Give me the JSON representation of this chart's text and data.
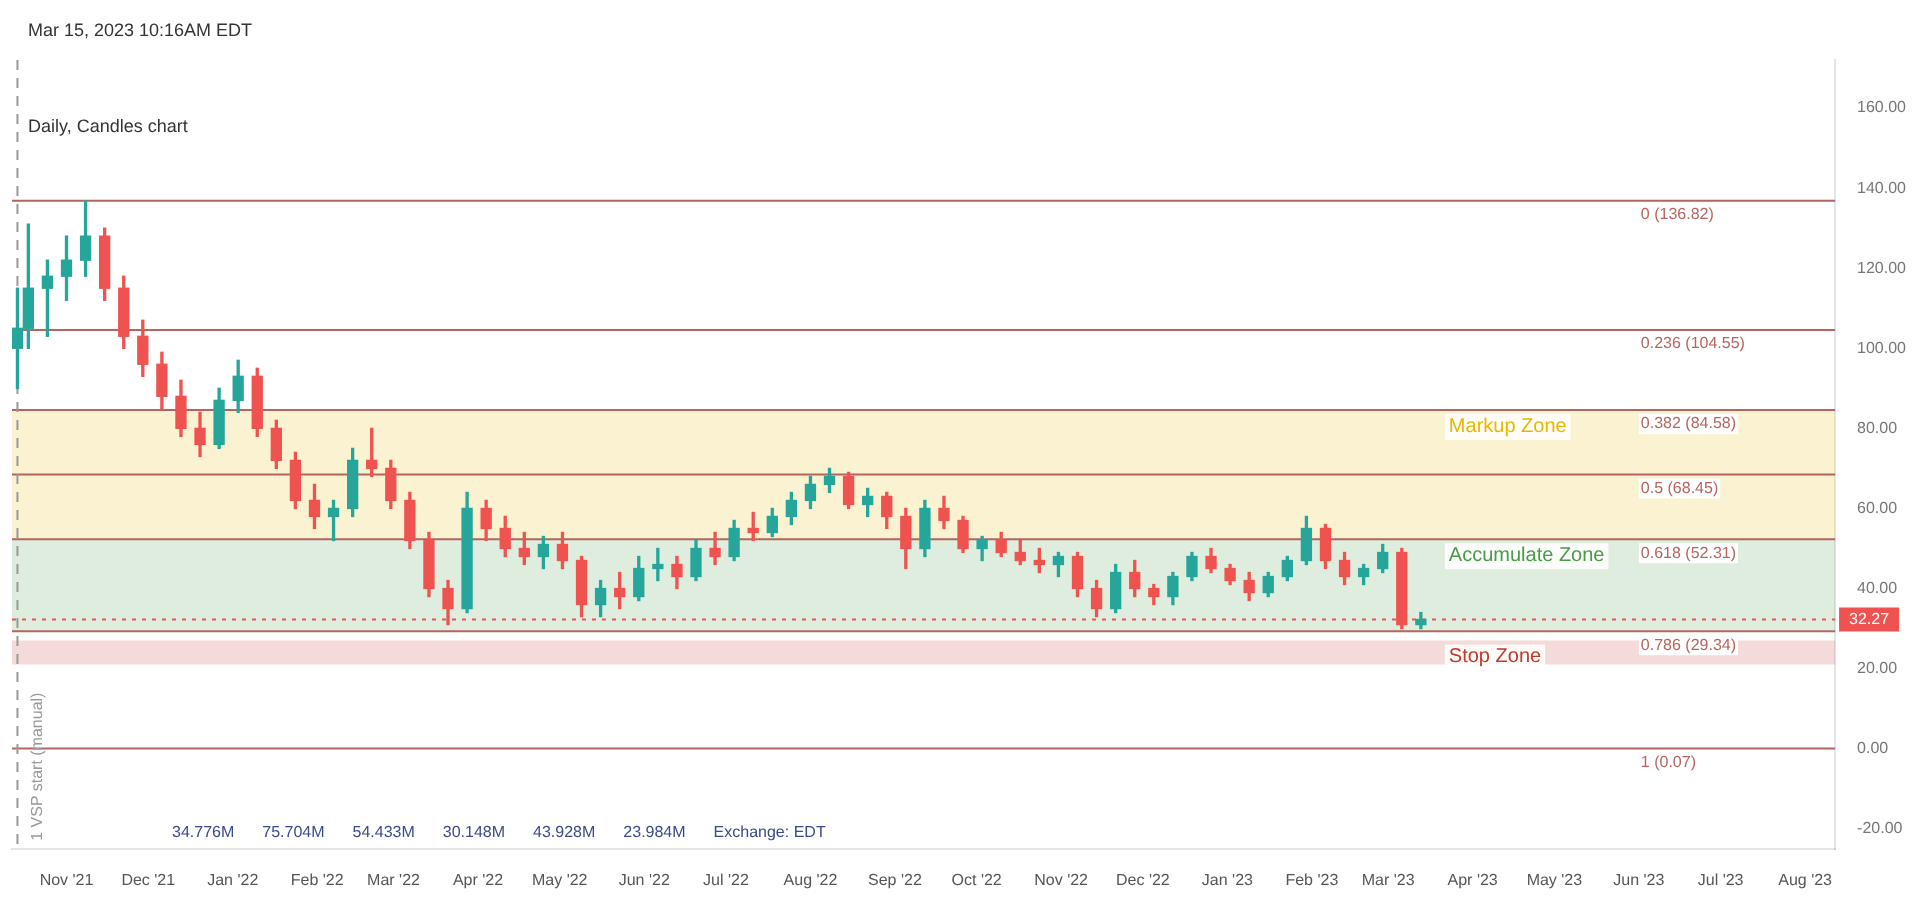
{
  "chart_data": {
    "type": "candlestick",
    "title": "Daily, Candles chart",
    "subtitle": "Mar 15, 2023 10:16AM EDT",
    "x": [
      "2021-10-14",
      "2021-10-18",
      "2021-10-25",
      "2021-11-01",
      "2021-11-08",
      "2021-11-15",
      "2021-11-22",
      "2021-11-29",
      "2021-12-06",
      "2021-12-13",
      "2021-12-20",
      "2021-12-27",
      "2022-01-03",
      "2022-01-10",
      "2022-01-17",
      "2022-01-24",
      "2022-01-31",
      "2022-02-07",
      "2022-02-14",
      "2022-02-21",
      "2022-02-28",
      "2022-03-07",
      "2022-03-14",
      "2022-03-21",
      "2022-03-28",
      "2022-04-04",
      "2022-04-11",
      "2022-04-18",
      "2022-04-25",
      "2022-05-02",
      "2022-05-09",
      "2022-05-16",
      "2022-05-23",
      "2022-05-30",
      "2022-06-06",
      "2022-06-13",
      "2022-06-20",
      "2022-06-27",
      "2022-07-04",
      "2022-07-11",
      "2022-07-18",
      "2022-07-25",
      "2022-08-01",
      "2022-08-08",
      "2022-08-15",
      "2022-08-22",
      "2022-08-29",
      "2022-09-05",
      "2022-09-12",
      "2022-09-19",
      "2022-09-26",
      "2022-10-03",
      "2022-10-10",
      "2022-10-17",
      "2022-10-24",
      "2022-10-31",
      "2022-11-07",
      "2022-11-14",
      "2022-11-21",
      "2022-11-28",
      "2022-12-05",
      "2022-12-12",
      "2022-12-19",
      "2022-12-26",
      "2023-01-02",
      "2023-01-09",
      "2023-01-16",
      "2023-01-23",
      "2023-01-30",
      "2023-02-06",
      "2023-02-13",
      "2023-02-20",
      "2023-02-27",
      "2023-03-06",
      "2023-03-13"
    ],
    "ohlc": [
      [
        100,
        115,
        90,
        105
      ],
      [
        105,
        131,
        100,
        115
      ],
      [
        115,
        122,
        103,
        118
      ],
      [
        118,
        128,
        112,
        122
      ],
      [
        122,
        136.82,
        118,
        128
      ],
      [
        128,
        130,
        112,
        115
      ],
      [
        115,
        118,
        100,
        103
      ],
      [
        103,
        107,
        93,
        96
      ],
      [
        96,
        99,
        85,
        88
      ],
      [
        88,
        92,
        78,
        80
      ],
      [
        80,
        84,
        73,
        76
      ],
      [
        76,
        90,
        75,
        87
      ],
      [
        87,
        97,
        84,
        93
      ],
      [
        93,
        95,
        78,
        80
      ],
      [
        80,
        82,
        70,
        72
      ],
      [
        72,
        74,
        60,
        62
      ],
      [
        62,
        66,
        55,
        58
      ],
      [
        58,
        62,
        52,
        60
      ],
      [
        60,
        75,
        58,
        72
      ],
      [
        72,
        80,
        68,
        70
      ],
      [
        70,
        72,
        60,
        62
      ],
      [
        62,
        64,
        50,
        52
      ],
      [
        52,
        54,
        38,
        40
      ],
      [
        40,
        42,
        31,
        35
      ],
      [
        35,
        64,
        34,
        60
      ],
      [
        60,
        62,
        52,
        55
      ],
      [
        55,
        58,
        48,
        50
      ],
      [
        50,
        54,
        46,
        48
      ],
      [
        48,
        53,
        45,
        51
      ],
      [
        51,
        54,
        45,
        47
      ],
      [
        47,
        48,
        33,
        36
      ],
      [
        36,
        42,
        33,
        40
      ],
      [
        40,
        44,
        35,
        38
      ],
      [
        38,
        48,
        37,
        45
      ],
      [
        45,
        50,
        42,
        46
      ],
      [
        46,
        48,
        40,
        43
      ],
      [
        43,
        52,
        42,
        50
      ],
      [
        50,
        54,
        46,
        48
      ],
      [
        48,
        57,
        47,
        55
      ],
      [
        55,
        59,
        52,
        54
      ],
      [
        54,
        60,
        53,
        58
      ],
      [
        58,
        64,
        56,
        62
      ],
      [
        62,
        68,
        60,
        66
      ],
      [
        66,
        70,
        64,
        68
      ],
      [
        68,
        69,
        60,
        61
      ],
      [
        61,
        65,
        58,
        63
      ],
      [
        63,
        64,
        55,
        58
      ],
      [
        58,
        60,
        45,
        50
      ],
      [
        50,
        62,
        48,
        60
      ],
      [
        60,
        63,
        55,
        57
      ],
      [
        57,
        58,
        49,
        50
      ],
      [
        50,
        53,
        47,
        52
      ],
      [
        52,
        54,
        48,
        49
      ],
      [
        49,
        52,
        46,
        47
      ],
      [
        47,
        50,
        44,
        46
      ],
      [
        46,
        49,
        43,
        48
      ],
      [
        48,
        49,
        38,
        40
      ],
      [
        40,
        42,
        33,
        35
      ],
      [
        35,
        46,
        34,
        44
      ],
      [
        44,
        47,
        38,
        40
      ],
      [
        40,
        41,
        36,
        38
      ],
      [
        38,
        44,
        36,
        43
      ],
      [
        43,
        49,
        42,
        48
      ],
      [
        48,
        50,
        44,
        45
      ],
      [
        45,
        46,
        41,
        42
      ],
      [
        42,
        44,
        37,
        39
      ],
      [
        39,
        44,
        38,
        43
      ],
      [
        43,
        48,
        42,
        47
      ],
      [
        47,
        58,
        46,
        55
      ],
      [
        55,
        56,
        45,
        47
      ],
      [
        47,
        49,
        41,
        43
      ],
      [
        43,
        46,
        41,
        45
      ],
      [
        45,
        51,
        44,
        49
      ],
      [
        49,
        50,
        30,
        31
      ],
      [
        31,
        34,
        30,
        32.27
      ]
    ],
    "colors": [
      "#26a69a",
      "#26a69a",
      "#26a69a",
      "#26a69a",
      "#26a69a",
      "#ef5350",
      "#ef5350",
      "#ef5350",
      "#ef5350",
      "#ef5350",
      "#ef5350",
      "#26a69a",
      "#26a69a",
      "#ef5350",
      "#ef5350",
      "#ef5350",
      "#ef5350",
      "#26a69a",
      "#26a69a",
      "#ef5350",
      "#ef5350",
      "#ef5350",
      "#ef5350",
      "#ef5350",
      "#26a69a",
      "#ef5350",
      "#ef5350",
      "#ef5350",
      "#26a69a",
      "#ef5350",
      "#ef5350",
      "#26a69a",
      "#ef5350",
      "#26a69a",
      "#26a69a",
      "#ef5350",
      "#26a69a",
      "#ef5350",
      "#26a69a",
      "#ef5350",
      "#26a69a",
      "#26a69a",
      "#26a69a",
      "#26a69a",
      "#ef5350",
      "#26a69a",
      "#ef5350",
      "#ef5350",
      "#26a69a",
      "#ef5350",
      "#ef5350",
      "#26a69a",
      "#ef5350",
      "#ef5350",
      "#ef5350",
      "#26a69a",
      "#ef5350",
      "#ef5350",
      "#26a69a",
      "#ef5350",
      "#ef5350",
      "#26a69a",
      "#26a69a",
      "#ef5350",
      "#ef5350",
      "#ef5350",
      "#26a69a",
      "#26a69a",
      "#26a69a",
      "#ef5350",
      "#ef5350",
      "#26a69a",
      "#26a69a",
      "#ef5350",
      "#26a69a"
    ],
    "xlim": [
      "2021-10-12",
      "2023-08-12"
    ],
    "xticks": [
      {
        "value": "2021-11-01",
        "label": "Nov '21"
      },
      {
        "value": "2021-12-01",
        "label": "Dec '21"
      },
      {
        "value": "2022-01-01",
        "label": "Jan '22"
      },
      {
        "value": "2022-02-01",
        "label": "Feb '22"
      },
      {
        "value": "2022-03-01",
        "label": "Mar '22"
      },
      {
        "value": "2022-04-01",
        "label": "Apr '22"
      },
      {
        "value": "2022-05-01",
        "label": "May '22"
      },
      {
        "value": "2022-06-01",
        "label": "Jun '22"
      },
      {
        "value": "2022-07-01",
        "label": "Jul '22"
      },
      {
        "value": "2022-08-01",
        "label": "Aug '22"
      },
      {
        "value": "2022-09-01",
        "label": "Sep '22"
      },
      {
        "value": "2022-10-01",
        "label": "Oct '22"
      },
      {
        "value": "2022-11-01",
        "label": "Nov '22"
      },
      {
        "value": "2022-12-01",
        "label": "Dec '22"
      },
      {
        "value": "2023-01-01",
        "label": "Jan '23"
      },
      {
        "value": "2023-02-01",
        "label": "Feb '23"
      },
      {
        "value": "2023-03-01",
        "label": "Mar '23"
      },
      {
        "value": "2023-04-01",
        "label": "Apr '23"
      },
      {
        "value": "2023-05-01",
        "label": "May '23"
      },
      {
        "value": "2023-06-01",
        "label": "Jun '23"
      },
      {
        "value": "2023-07-01",
        "label": "Jul '23"
      },
      {
        "value": "2023-08-01",
        "label": "Aug '23"
      }
    ],
    "ylim": [
      -25,
      172
    ],
    "yticks": [
      {
        "value": -20,
        "label": "-20.00"
      },
      {
        "value": 0,
        "label": "0.00"
      },
      {
        "value": 20,
        "label": "20.00"
      },
      {
        "value": 40,
        "label": "40.00"
      },
      {
        "value": 60,
        "label": "60.00"
      },
      {
        "value": 80,
        "label": "80.00"
      },
      {
        "value": 100,
        "label": "100.00"
      },
      {
        "value": 120,
        "label": "120.00"
      },
      {
        "value": 140,
        "label": "140.00"
      },
      {
        "value": 160,
        "label": "160.00"
      }
    ],
    "grid": false,
    "legend": false,
    "ref_lines": [
      {
        "axis": "y",
        "value": 136.82,
        "label": "0 (136.82)",
        "color": "#b5655e",
        "line_style": "solid"
      },
      {
        "axis": "y",
        "value": 104.55,
        "label": "0.236 (104.55)",
        "color": "#b5655e",
        "line_style": "solid"
      },
      {
        "axis": "y",
        "value": 84.58,
        "label": "0.382 (84.58)",
        "color": "#b5655e",
        "line_style": "solid"
      },
      {
        "axis": "y",
        "value": 68.45,
        "label": "0.5 (68.45)",
        "color": "#b5655e",
        "line_style": "solid"
      },
      {
        "axis": "y",
        "value": 52.31,
        "label": "0.618 (52.31)",
        "color": "#b5655e",
        "line_style": "solid"
      },
      {
        "axis": "y",
        "value": 29.34,
        "label": "0.786 (29.34)",
        "color": "#b5655e",
        "line_style": "solid"
      },
      {
        "axis": "y",
        "value": 0.07,
        "label": "1 (0.07)",
        "color": "#b5655e",
        "line_style": "solid"
      },
      {
        "axis": "y",
        "value": 32.27,
        "label": "32.27",
        "color": "#ef5350",
        "line_style": "dotted"
      },
      {
        "axis": "x",
        "value": "2021-10-14",
        "label": "1 VSP start (manual)",
        "color": "#999999",
        "line_style": "dashed"
      }
    ],
    "bands": [
      {
        "axis": "y",
        "from": 52.31,
        "to": 84.58,
        "label": "Markup Zone",
        "color": "#e6b800"
      },
      {
        "axis": "y",
        "from": 29.34,
        "to": 52.31,
        "label": "Accumulate Zone",
        "color": "#4a9a4a"
      },
      {
        "axis": "y",
        "from": 21,
        "to": 27,
        "label": "Stop Zone",
        "color": "#c0392b"
      }
    ],
    "annotations": [
      "34.776M",
      "75.704M",
      "54.433M",
      "30.148M",
      "43.928M",
      "23.984M",
      "Exchange: EDT"
    ]
  }
}
